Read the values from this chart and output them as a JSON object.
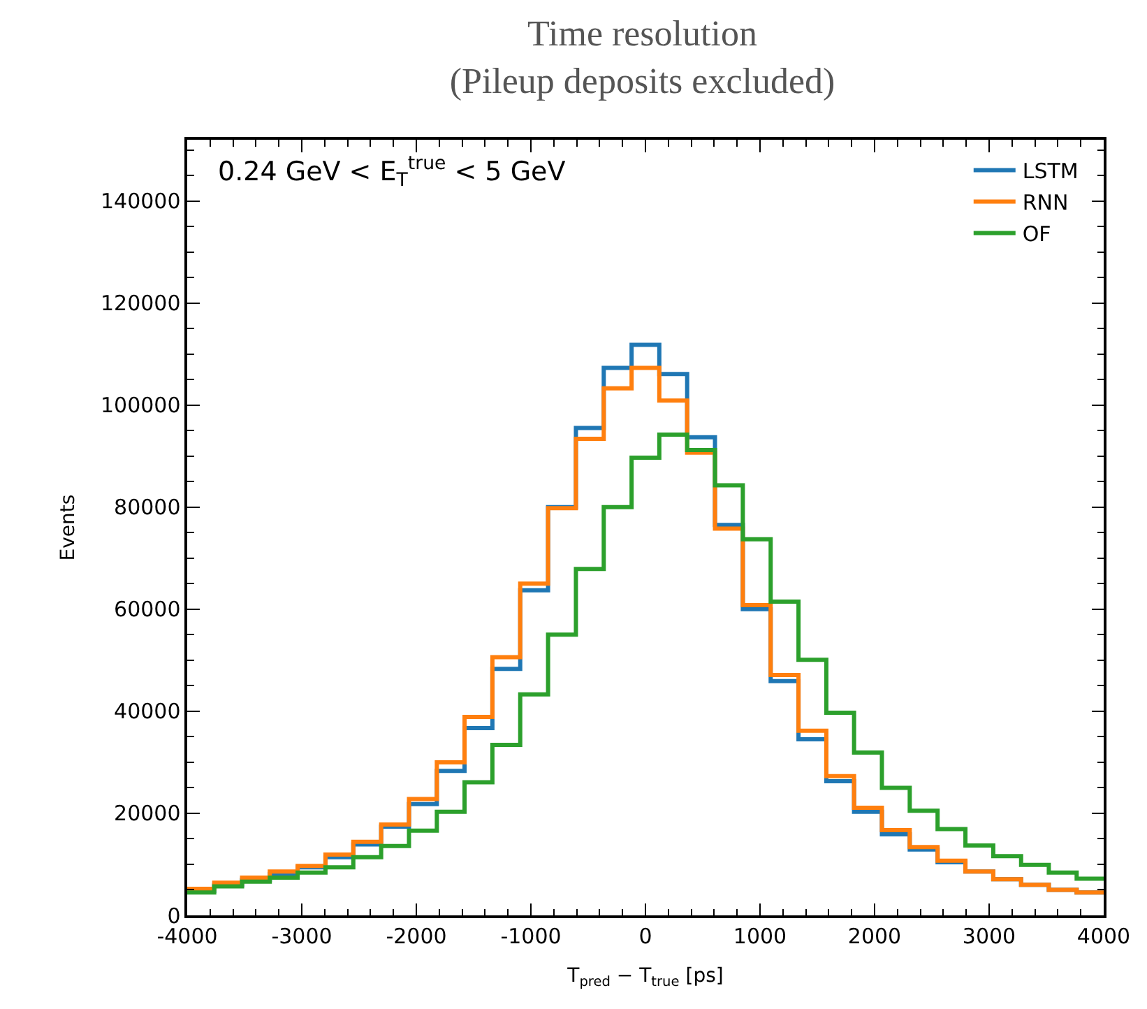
{
  "chart_data": {
    "type": "histogram",
    "title": "Time resolution\n(Pileup deposits excluded)",
    "xlabel": "T$_{pred}$ − T$_{true}$ [ps]",
    "ylabel": "Events",
    "annotations": [
      "0.24 GeV < E$_{T}$$^{true}$ < 5 GeV"
    ],
    "bins": [
      -4000,
      -3764,
      -3521,
      -3279,
      -3036,
      -2793,
      -2550,
      -2307,
      -2064,
      -1821,
      -1579,
      -1336,
      -1093,
      -850,
      -607,
      -364,
      -121,
      121,
      364,
      607,
      850,
      1093,
      1336,
      1579,
      1821,
      2064,
      2307,
      2550,
      2793,
      3036,
      3279,
      3521,
      3764,
      4000
    ],
    "series": [
      {
        "name": "LSTM",
        "color": "#1f77b4",
        "values": [
          4800,
          6000,
          7000,
          8100,
          9400,
          11400,
          13900,
          17400,
          21800,
          28300,
          36700,
          48300,
          63700,
          80000,
          95500,
          107300,
          111800,
          106100,
          93700,
          76500,
          60000,
          45900,
          34500,
          26300,
          20300,
          15900,
          12900,
          10400,
          8600,
          7100,
          6000,
          5000,
          4500
        ]
      },
      {
        "name": "RNN",
        "color": "#ff7f0e",
        "values": [
          5200,
          6400,
          7400,
          8600,
          9700,
          11900,
          14400,
          17800,
          22800,
          30000,
          38900,
          50600,
          65000,
          79800,
          93400,
          103300,
          107300,
          100900,
          90700,
          75800,
          60800,
          47100,
          36200,
          27300,
          21100,
          16700,
          13400,
          10700,
          8600,
          7100,
          6000,
          5000,
          4500
        ]
      },
      {
        "name": "OF",
        "color": "#2ca02c",
        "values": [
          4500,
          5700,
          6600,
          7400,
          8400,
          9400,
          11400,
          13600,
          16600,
          20300,
          26100,
          33400,
          43300,
          55000,
          67900,
          80000,
          89700,
          94200,
          91200,
          84300,
          73700,
          61500,
          50100,
          39700,
          31900,
          25000,
          20500,
          16900,
          13700,
          11600,
          9900,
          8400,
          7200
        ]
      }
    ],
    "xlim": [
      -4000,
      4000
    ],
    "xticks": [
      -4000,
      -3000,
      -2000,
      -1000,
      0,
      1000,
      2000,
      3000,
      4000
    ],
    "ylim": [
      0,
      152000
    ],
    "yticks": [
      0,
      20000,
      40000,
      60000,
      80000,
      100000,
      120000,
      140000
    ],
    "legend": "top right"
  }
}
